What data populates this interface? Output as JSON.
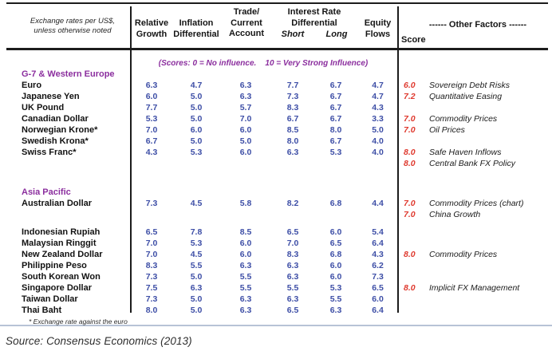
{
  "colors": {
    "accent_purple": "#8B2E9E",
    "value_blue": "#3D4EA6",
    "score_red": "#DF392E",
    "rule_dark": "#1C1C1C",
    "rule_light": "#B7C3D6"
  },
  "header": {
    "corner_line1": "Exchange rates per US$,",
    "corner_line2": "unless otherwise noted",
    "relative_line1": "Relative",
    "relative_line2": "Growth",
    "inflation_line1": "Inflation",
    "inflation_line2": "Differential",
    "trade_line1": "Trade/",
    "trade_line2": "Current",
    "trade_line3": "Account",
    "ir_line1": "Interest Rate",
    "ir_line2": "Differential",
    "short": "Short",
    "long": "Long",
    "equity_line1": "Equity",
    "equity_line2": "Flows",
    "score": "Score",
    "other_factors": "------ Other Factors ------"
  },
  "table": {
    "value_columns": [
      "Relative Growth",
      "Inflation Differential",
      "Trade/Current Account",
      "Interest Rate Differential Short",
      "Interest Rate Differential Long",
      "Equity Flows"
    ],
    "rows": [
      {
        "type": "note",
        "label": "(Scores: 0 = No influence.    10 = Very Strong Influence)"
      },
      {
        "type": "section",
        "label": "G-7 & Western Europe"
      },
      {
        "type": "currency",
        "name": "Euro",
        "values": [
          "6.3",
          "4.7",
          "6.3",
          "7.7",
          "6.7",
          "4.7"
        ],
        "score": "6.0",
        "factor": "Sovereign Debt Risks"
      },
      {
        "type": "currency",
        "name": "Japanese Yen",
        "values": [
          "6.0",
          "5.0",
          "6.3",
          "7.3",
          "6.7",
          "4.7"
        ],
        "score": "7.2",
        "factor": "Quantitative Easing"
      },
      {
        "type": "currency",
        "name": "UK Pound",
        "values": [
          "7.7",
          "5.0",
          "5.7",
          "8.3",
          "6.7",
          "4.3"
        ],
        "score": "",
        "factor": ""
      },
      {
        "type": "currency",
        "name": "Canadian Dollar",
        "values": [
          "5.3",
          "5.0",
          "7.0",
          "6.7",
          "6.7",
          "3.3"
        ],
        "score": "7.0",
        "factor": "Commodity Prices"
      },
      {
        "type": "currency",
        "name": "Norwegian Krone*",
        "values": [
          "7.0",
          "6.0",
          "6.0",
          "8.5",
          "8.0",
          "5.0"
        ],
        "score": "7.0",
        "factor": "Oil Prices"
      },
      {
        "type": "currency",
        "name": "Swedish Krona*",
        "values": [
          "6.7",
          "5.0",
          "5.0",
          "8.0",
          "6.7",
          "4.0"
        ],
        "score": "",
        "factor": ""
      },
      {
        "type": "currency",
        "name": "Swiss Franc*",
        "values": [
          "4.3",
          "5.3",
          "6.0",
          "6.3",
          "5.3",
          "4.0"
        ],
        "score": "8.0",
        "factor": "Safe Haven Inflows"
      },
      {
        "type": "extra",
        "score": "8.0",
        "factor": "Central Bank FX Policy"
      },
      {
        "type": "spacer",
        "h": 22
      },
      {
        "type": "section",
        "label": "Asia Pacific"
      },
      {
        "type": "currency",
        "name": "Australian Dollar",
        "values": [
          "7.3",
          "4.5",
          "5.8",
          "8.2",
          "6.8",
          "4.4"
        ],
        "score": "7.0",
        "factor": "Commodity Prices (chart)"
      },
      {
        "type": "extra",
        "score": "7.0",
        "factor": "China Growth"
      },
      {
        "type": "spacer",
        "h": 8
      },
      {
        "type": "currency",
        "name": "Indonesian Rupiah",
        "values": [
          "6.5",
          "7.8",
          "8.5",
          "6.5",
          "6.0",
          "5.4"
        ],
        "score": "",
        "factor": ""
      },
      {
        "type": "currency",
        "name": "Malaysian Ringgit",
        "values": [
          "7.0",
          "5.3",
          "6.0",
          "7.0",
          "6.5",
          "6.4"
        ],
        "score": "",
        "factor": ""
      },
      {
        "type": "currency",
        "name": "New Zealand Dollar",
        "values": [
          "7.0",
          "4.5",
          "6.0",
          "8.3",
          "6.8",
          "4.3"
        ],
        "score": "8.0",
        "factor": "Commodity Prices"
      },
      {
        "type": "currency",
        "name": "Philippine Peso",
        "values": [
          "8.3",
          "5.5",
          "6.3",
          "6.3",
          "6.0",
          "6.2"
        ],
        "score": "",
        "factor": ""
      },
      {
        "type": "currency",
        "name": "South Korean Won",
        "values": [
          "7.3",
          "5.0",
          "5.5",
          "6.3",
          "6.0",
          "7.3"
        ],
        "score": "",
        "factor": ""
      },
      {
        "type": "currency",
        "name": "Singapore Dollar",
        "values": [
          "7.5",
          "6.3",
          "5.5",
          "5.5",
          "5.3",
          "6.5"
        ],
        "score": "8.0",
        "factor": "Implicit FX Management"
      },
      {
        "type": "currency",
        "name": "Taiwan Dollar",
        "values": [
          "7.3",
          "5.0",
          "6.3",
          "6.3",
          "5.5",
          "6.0"
        ],
        "score": "",
        "factor": ""
      },
      {
        "type": "currency",
        "name": "Thai Baht",
        "values": [
          "8.0",
          "5.0",
          "6.3",
          "6.5",
          "6.3",
          "6.4"
        ],
        "score": "",
        "factor": ""
      },
      {
        "type": "footnote",
        "label": "* Exchange rate against the euro"
      }
    ]
  },
  "source": "Source: Consensus Economics (2013)"
}
